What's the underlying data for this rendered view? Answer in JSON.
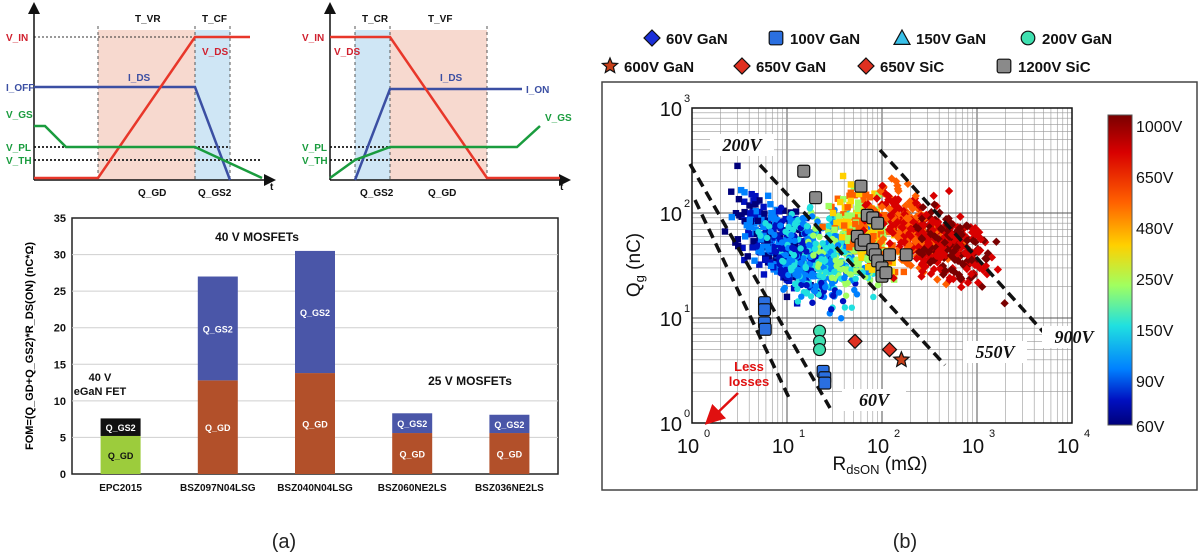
{
  "captions": {
    "left": "(a)",
    "right": "(b)"
  },
  "waveform_left": {
    "top_labels": [
      "T_VR",
      "T_CF"
    ],
    "left_labels": [
      "V_IN",
      "I_OFF",
      "V_GS",
      "V_PL",
      "V_TH"
    ],
    "curve_labels": [
      "I_DS",
      "V_DS"
    ],
    "bottom_labels": [
      "Q_GD",
      "Q_GS2"
    ],
    "axis_label": "t",
    "colors": {
      "vds": "#e8372a",
      "ids": "#3b4fa3",
      "vgs": "#1a9c3e",
      "shade_red": "#f7d9cf",
      "shade_blue": "#cfe6f5",
      "label_red": "#d0202e",
      "label_blue": "#3b4fa3",
      "label_green": "#1a9c3e"
    }
  },
  "waveform_right": {
    "top_labels": [
      "T_CR",
      "T_VF"
    ],
    "left_labels": [
      "V_IN",
      "V_DS",
      "V_PL",
      "V_TH"
    ],
    "curve_labels": [
      "I_DS",
      "I_ON",
      "V_GS"
    ],
    "bottom_labels": [
      "Q_GS2",
      "Q_GD"
    ],
    "axis_label": "t"
  },
  "chart_data": [
    {
      "type": "bar",
      "stacked": true,
      "ylabel": "FOM=(Q_GD+Q_GS2)*R_DS(ON) (nC*Ω)",
      "ylim": [
        0,
        35
      ],
      "yticks": [
        0,
        5,
        10,
        15,
        20,
        25,
        30,
        35
      ],
      "categories": [
        "EPC2015",
        "BSZ097N04LSG",
        "BSZ040N04LSG",
        "BSZ060NE2LS",
        "BSZ036NE2LS"
      ],
      "series": [
        {
          "name": "Q_GD",
          "values": [
            5.2,
            12.8,
            13.8,
            5.6,
            5.6
          ],
          "colors": [
            "#9ccc3c",
            "#b2502a",
            "#b2502a",
            "#b2502a",
            "#b2502a"
          ]
        },
        {
          "name": "Q_GS2",
          "values": [
            2.4,
            14.2,
            16.7,
            2.7,
            2.5
          ],
          "colors": [
            "#111111",
            "#4a56a8",
            "#4a56a8",
            "#4a56a8",
            "#4a56a8"
          ]
        }
      ],
      "segment_labels": {
        "gd": "Q_GD",
        "gs2": "Q_GS2"
      },
      "annotations": [
        {
          "text": "40 V MOSFETs"
        },
        {
          "text": "40 V"
        },
        {
          "text": "eGaN FET"
        },
        {
          "text": "25 V MOSFETs"
        }
      ]
    },
    {
      "type": "scatter",
      "xlabel": "R_dsON (mΩ)",
      "ylabel": "Q_g (nC)",
      "x_scale": "log",
      "y_scale": "log",
      "xlim": [
        1,
        10000
      ],
      "ylim": [
        1,
        1000
      ],
      "x_ticks": [
        "10^0",
        "10^1",
        "10^2",
        "10^3",
        "10^4"
      ],
      "y_ticks": [
        "10^0",
        "10^1",
        "10^2",
        "10^3"
      ],
      "legend": [
        {
          "name": "60V GaN",
          "marker": "diamond",
          "color": "#1a2fd8"
        },
        {
          "name": "100V GaN",
          "marker": "square",
          "color": "#2a6fe0"
        },
        {
          "name": "150V GaN",
          "marker": "triangle",
          "color": "#39c0e8"
        },
        {
          "name": "200V GaN",
          "marker": "circle",
          "color": "#3fe0b0"
        },
        {
          "name": "600V GaN",
          "marker": "star",
          "color": "#c8401a"
        },
        {
          "name": "650V GaN",
          "marker": "diamond",
          "color": "#e03020"
        },
        {
          "name": "650V SiC",
          "marker": "diamond",
          "color": "#e03020"
        },
        {
          "name": "1200V SiC",
          "marker": "square",
          "color": "#8a8a8a"
        }
      ],
      "colorbar": {
        "labels": [
          "1000V",
          "650V",
          "480V",
          "250V",
          "150V",
          "90V",
          "60V"
        ],
        "colors": [
          "#7a0000",
          "#d80000",
          "#ff6000",
          "#ffd000",
          "#a0ff60",
          "#20e0e0",
          "#0080ff",
          "#0010c0",
          "#00007a"
        ]
      },
      "fom_lines": [
        "200V",
        "60V",
        "550V",
        "900V"
      ],
      "annotation": "Less losses",
      "highlighted_points": {
        "sic_1200v": [
          [
            15,
            250
          ],
          [
            20,
            140
          ],
          [
            60,
            180
          ],
          [
            70,
            95
          ],
          [
            80,
            90
          ],
          [
            90,
            80
          ],
          [
            55,
            60
          ],
          [
            60,
            50
          ],
          [
            65,
            55
          ],
          [
            80,
            45
          ],
          [
            85,
            40
          ],
          [
            90,
            35
          ],
          [
            100,
            30
          ],
          [
            120,
            40
          ],
          [
            100,
            25
          ],
          [
            110,
            27
          ],
          [
            180,
            40
          ]
        ],
        "gan_100v": [
          [
            5.8,
            14
          ],
          [
            5.8,
            12
          ],
          [
            5.8,
            9
          ],
          [
            5.9,
            7.8
          ],
          [
            24,
            3.1
          ],
          [
            25,
            2.7
          ],
          [
            25,
            2.4
          ]
        ],
        "gan_200v": [
          [
            22,
            7.5
          ],
          [
            22,
            6
          ],
          [
            22,
            5
          ]
        ],
        "gan_650v": [
          [
            52,
            6
          ],
          [
            120,
            5
          ]
        ],
        "gan_600v": [
          [
            160,
            4
          ]
        ]
      }
    }
  ]
}
